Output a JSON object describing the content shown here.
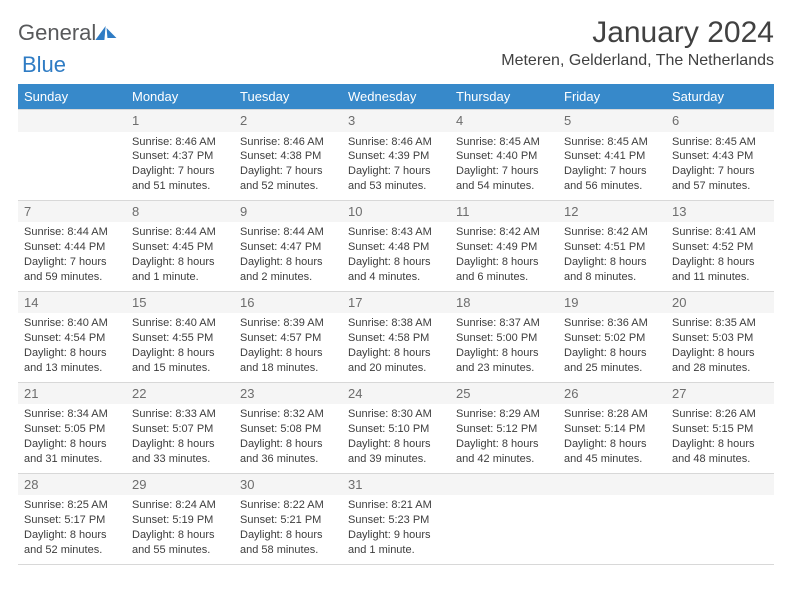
{
  "logo": {
    "word1": "General",
    "word2": "Blue"
  },
  "title": "January 2024",
  "location": "Meteren, Gelderland, The Netherlands",
  "colors": {
    "header_bg": "#3789ca",
    "header_text": "#ffffff",
    "numrow_bg": "#f5f5f5",
    "text": "#3d3d3d",
    "border": "#d8d8d8"
  },
  "weekday_labels": [
    "Sunday",
    "Monday",
    "Tuesday",
    "Wednesday",
    "Thursday",
    "Friday",
    "Saturday"
  ],
  "weeks": [
    [
      null,
      {
        "n": "1",
        "sr": "8:46 AM",
        "ss": "4:37 PM",
        "dl": "7 hours and 51 minutes."
      },
      {
        "n": "2",
        "sr": "8:46 AM",
        "ss": "4:38 PM",
        "dl": "7 hours and 52 minutes."
      },
      {
        "n": "3",
        "sr": "8:46 AM",
        "ss": "4:39 PM",
        "dl": "7 hours and 53 minutes."
      },
      {
        "n": "4",
        "sr": "8:45 AM",
        "ss": "4:40 PM",
        "dl": "7 hours and 54 minutes."
      },
      {
        "n": "5",
        "sr": "8:45 AM",
        "ss": "4:41 PM",
        "dl": "7 hours and 56 minutes."
      },
      {
        "n": "6",
        "sr": "8:45 AM",
        "ss": "4:43 PM",
        "dl": "7 hours and 57 minutes."
      }
    ],
    [
      {
        "n": "7",
        "sr": "8:44 AM",
        "ss": "4:44 PM",
        "dl": "7 hours and 59 minutes."
      },
      {
        "n": "8",
        "sr": "8:44 AM",
        "ss": "4:45 PM",
        "dl": "8 hours and 1 minute."
      },
      {
        "n": "9",
        "sr": "8:44 AM",
        "ss": "4:47 PM",
        "dl": "8 hours and 2 minutes."
      },
      {
        "n": "10",
        "sr": "8:43 AM",
        "ss": "4:48 PM",
        "dl": "8 hours and 4 minutes."
      },
      {
        "n": "11",
        "sr": "8:42 AM",
        "ss": "4:49 PM",
        "dl": "8 hours and 6 minutes."
      },
      {
        "n": "12",
        "sr": "8:42 AM",
        "ss": "4:51 PM",
        "dl": "8 hours and 8 minutes."
      },
      {
        "n": "13",
        "sr": "8:41 AM",
        "ss": "4:52 PM",
        "dl": "8 hours and 11 minutes."
      }
    ],
    [
      {
        "n": "14",
        "sr": "8:40 AM",
        "ss": "4:54 PM",
        "dl": "8 hours and 13 minutes."
      },
      {
        "n": "15",
        "sr": "8:40 AM",
        "ss": "4:55 PM",
        "dl": "8 hours and 15 minutes."
      },
      {
        "n": "16",
        "sr": "8:39 AM",
        "ss": "4:57 PM",
        "dl": "8 hours and 18 minutes."
      },
      {
        "n": "17",
        "sr": "8:38 AM",
        "ss": "4:58 PM",
        "dl": "8 hours and 20 minutes."
      },
      {
        "n": "18",
        "sr": "8:37 AM",
        "ss": "5:00 PM",
        "dl": "8 hours and 23 minutes."
      },
      {
        "n": "19",
        "sr": "8:36 AM",
        "ss": "5:02 PM",
        "dl": "8 hours and 25 minutes."
      },
      {
        "n": "20",
        "sr": "8:35 AM",
        "ss": "5:03 PM",
        "dl": "8 hours and 28 minutes."
      }
    ],
    [
      {
        "n": "21",
        "sr": "8:34 AM",
        "ss": "5:05 PM",
        "dl": "8 hours and 31 minutes."
      },
      {
        "n": "22",
        "sr": "8:33 AM",
        "ss": "5:07 PM",
        "dl": "8 hours and 33 minutes."
      },
      {
        "n": "23",
        "sr": "8:32 AM",
        "ss": "5:08 PM",
        "dl": "8 hours and 36 minutes."
      },
      {
        "n": "24",
        "sr": "8:30 AM",
        "ss": "5:10 PM",
        "dl": "8 hours and 39 minutes."
      },
      {
        "n": "25",
        "sr": "8:29 AM",
        "ss": "5:12 PM",
        "dl": "8 hours and 42 minutes."
      },
      {
        "n": "26",
        "sr": "8:28 AM",
        "ss": "5:14 PM",
        "dl": "8 hours and 45 minutes."
      },
      {
        "n": "27",
        "sr": "8:26 AM",
        "ss": "5:15 PM",
        "dl": "8 hours and 48 minutes."
      }
    ],
    [
      {
        "n": "28",
        "sr": "8:25 AM",
        "ss": "5:17 PM",
        "dl": "8 hours and 52 minutes."
      },
      {
        "n": "29",
        "sr": "8:24 AM",
        "ss": "5:19 PM",
        "dl": "8 hours and 55 minutes."
      },
      {
        "n": "30",
        "sr": "8:22 AM",
        "ss": "5:21 PM",
        "dl": "8 hours and 58 minutes."
      },
      {
        "n": "31",
        "sr": "8:21 AM",
        "ss": "5:23 PM",
        "dl": "9 hours and 1 minute."
      },
      null,
      null,
      null
    ]
  ],
  "labels": {
    "sunrise": "Sunrise:",
    "sunset": "Sunset:",
    "daylight": "Daylight:"
  }
}
